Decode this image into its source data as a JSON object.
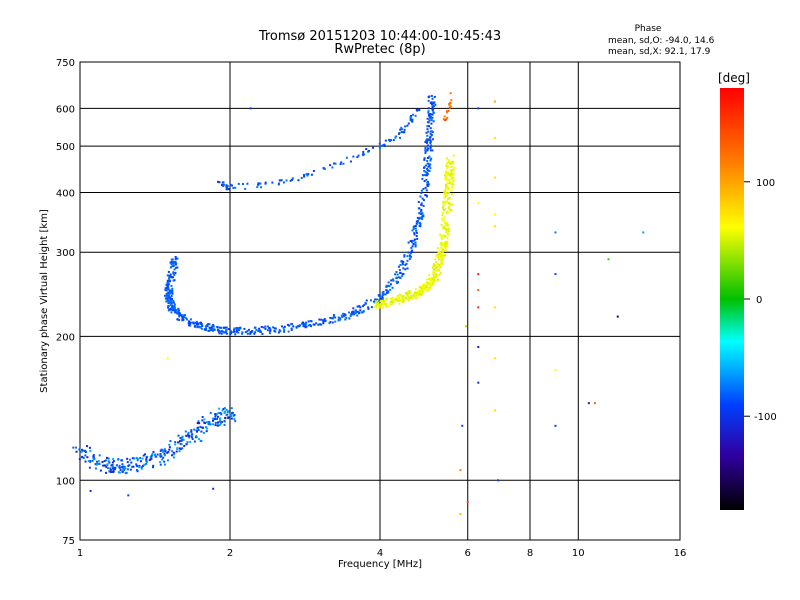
{
  "chart_data": {
    "type": "scatter",
    "title": "Tromsø 20151203 10:44:00-10:45:43",
    "subtitle": "RwPretec (8p)",
    "xlabel": "Frequency [MHz]",
    "ylabel": "Stationary phase Virtual Height [km]",
    "x_scale": "log",
    "y_scale": "log",
    "xlim": [
      1,
      16
    ],
    "ylim": [
      75,
      750
    ],
    "x_ticks": [
      1,
      2,
      4,
      6,
      8,
      10,
      16
    ],
    "y_ticks": [
      75,
      100,
      200,
      300,
      400,
      500,
      600,
      750
    ],
    "grid": true,
    "phase_stats": {
      "heading": "Phase",
      "line_o": "mean, sd,O: -94.0, 14.6",
      "line_x": "mean, sd,X:  92.1, 17.9"
    },
    "colorbar": {
      "label": "[deg]",
      "range": [
        -180,
        180
      ],
      "ticks": [
        100,
        0,
        -100
      ]
    },
    "series": [
      {
        "mode": "O",
        "phase_mean": -94.0,
        "trace": [
          [
            1.0,
            115
          ],
          [
            1.1,
            108
          ],
          [
            1.2,
            107
          ],
          [
            1.3,
            108
          ],
          [
            1.45,
            112
          ],
          [
            1.6,
            120
          ],
          [
            1.75,
            128
          ],
          [
            1.9,
            135
          ],
          [
            2.0,
            138
          ]
        ],
        "trace2": [
          [
            1.55,
            290
          ],
          [
            1.52,
            260
          ],
          [
            1.5,
            240
          ],
          [
            1.55,
            225
          ],
          [
            1.7,
            212
          ],
          [
            1.9,
            206
          ],
          [
            2.1,
            205
          ],
          [
            2.5,
            207
          ],
          [
            3.0,
            213
          ],
          [
            3.5,
            222
          ],
          [
            4.0,
            240
          ],
          [
            4.4,
            270
          ],
          [
            4.7,
            320
          ],
          [
            4.9,
            390
          ],
          [
            5.0,
            480
          ],
          [
            5.05,
            560
          ],
          [
            5.1,
            630
          ]
        ],
        "trace3": [
          [
            1.9,
            420
          ],
          [
            2.0,
            410
          ],
          [
            2.3,
            415
          ],
          [
            2.8,
            430
          ],
          [
            3.3,
            460
          ],
          [
            3.8,
            490
          ],
          [
            4.3,
            520
          ],
          [
            4.6,
            560
          ],
          [
            4.8,
            600
          ]
        ]
      },
      {
        "mode": "X",
        "phase_mean": 92.1,
        "trace": [
          [
            3.9,
            232
          ],
          [
            4.3,
            238
          ],
          [
            4.7,
            245
          ],
          [
            5.0,
            255
          ],
          [
            5.2,
            275
          ],
          [
            5.35,
            310
          ],
          [
            5.45,
            360
          ],
          [
            5.5,
            420
          ],
          [
            5.55,
            470
          ]
        ],
        "trace2": [
          [
            5.4,
            560
          ],
          [
            5.5,
            600
          ],
          [
            5.6,
            640
          ]
        ]
      }
    ],
    "isolated_echoes": [
      [
        6.3,
        600,
        -100
      ],
      [
        6.3,
        380,
        100
      ],
      [
        6.3,
        270,
        170
      ],
      [
        6.3,
        250,
        150
      ],
      [
        6.3,
        230,
        170
      ],
      [
        6.3,
        190,
        -120
      ],
      [
        6.3,
        160,
        -110
      ],
      [
        6.8,
        620,
        130
      ],
      [
        6.8,
        520,
        110
      ],
      [
        6.8,
        430,
        110
      ],
      [
        6.8,
        360,
        100
      ],
      [
        6.8,
        340,
        110
      ],
      [
        6.8,
        230,
        110
      ],
      [
        6.8,
        180,
        110
      ],
      [
        6.8,
        140,
        110
      ],
      [
        6.9,
        100,
        -100
      ],
      [
        9.0,
        330,
        -80
      ],
      [
        9.0,
        270,
        -100
      ],
      [
        9.0,
        170,
        100
      ],
      [
        9.0,
        130,
        -100
      ],
      [
        10.5,
        145,
        -120
      ],
      [
        10.8,
        145,
        150
      ],
      [
        11.5,
        290,
        20
      ],
      [
        12.0,
        220,
        -150
      ],
      [
        13.5,
        330,
        -70
      ],
      [
        6.0,
        90,
        160
      ],
      [
        5.8,
        105,
        140
      ],
      [
        5.8,
        85,
        120
      ],
      [
        5.85,
        130,
        -100
      ],
      [
        5.95,
        210,
        60
      ],
      [
        1.05,
        95,
        -110
      ],
      [
        1.25,
        93,
        -100
      ],
      [
        1.5,
        180,
        100
      ],
      [
        1.85,
        96,
        -110
      ],
      [
        2.2,
        600,
        -100
      ]
    ]
  }
}
